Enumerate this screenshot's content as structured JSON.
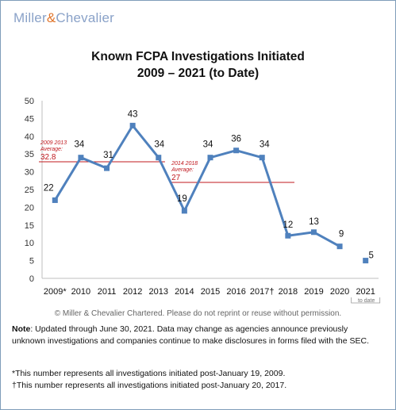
{
  "brand": {
    "name_left": "Miller",
    "amp": "&",
    "name_right": "Chevalier"
  },
  "chart_data": {
    "type": "line",
    "title": "Known FCPA Investigations Initiated",
    "subtitle": "2009 – 2021 (to Date)",
    "categories": [
      "2009*",
      "2010",
      "2011",
      "2012",
      "2013",
      "2014",
      "2015",
      "2016",
      "2017†",
      "2018",
      "2019",
      "2020",
      "2021"
    ],
    "tick_note": "to date",
    "series": [
      {
        "values": [
          22,
          34,
          31,
          43,
          34,
          19,
          34,
          36,
          34,
          12,
          13,
          9,
          null
        ],
        "color": "#4f81bd"
      },
      {
        "values": [
          null,
          null,
          null,
          null,
          null,
          null,
          null,
          null,
          null,
          null,
          null,
          null,
          5
        ],
        "color": "#4f81bd"
      }
    ],
    "ylim": [
      0,
      50
    ],
    "yticks": [
      0,
      5,
      10,
      15,
      20,
      25,
      30,
      35,
      40,
      45,
      50
    ],
    "grid": false,
    "averages": [
      {
        "label": "2009 2013 Average:",
        "value_text": "32.8",
        "value": 32.8,
        "from": 0,
        "to": 4,
        "color": "#c0181e"
      },
      {
        "label": "2014 2018 Average:",
        "value_text": "27",
        "value": 27,
        "from": 5,
        "to": 9,
        "color": "#c0181e"
      }
    ]
  },
  "copyright": "© Miller & Chevalier Chartered. Please do not reprint or reuse without permission.",
  "note": {
    "label": "Note",
    "text": ": Updated through June 30, 2021. Data may change as agencies announce previously unknown investigations and companies continue to make disclosures in forms filed with the SEC."
  },
  "footnotes": [
    "*This number represents all investigations initiated post-January 19, 2009.",
    "†This number represents all investigations initiated post-January 20, 2017."
  ]
}
